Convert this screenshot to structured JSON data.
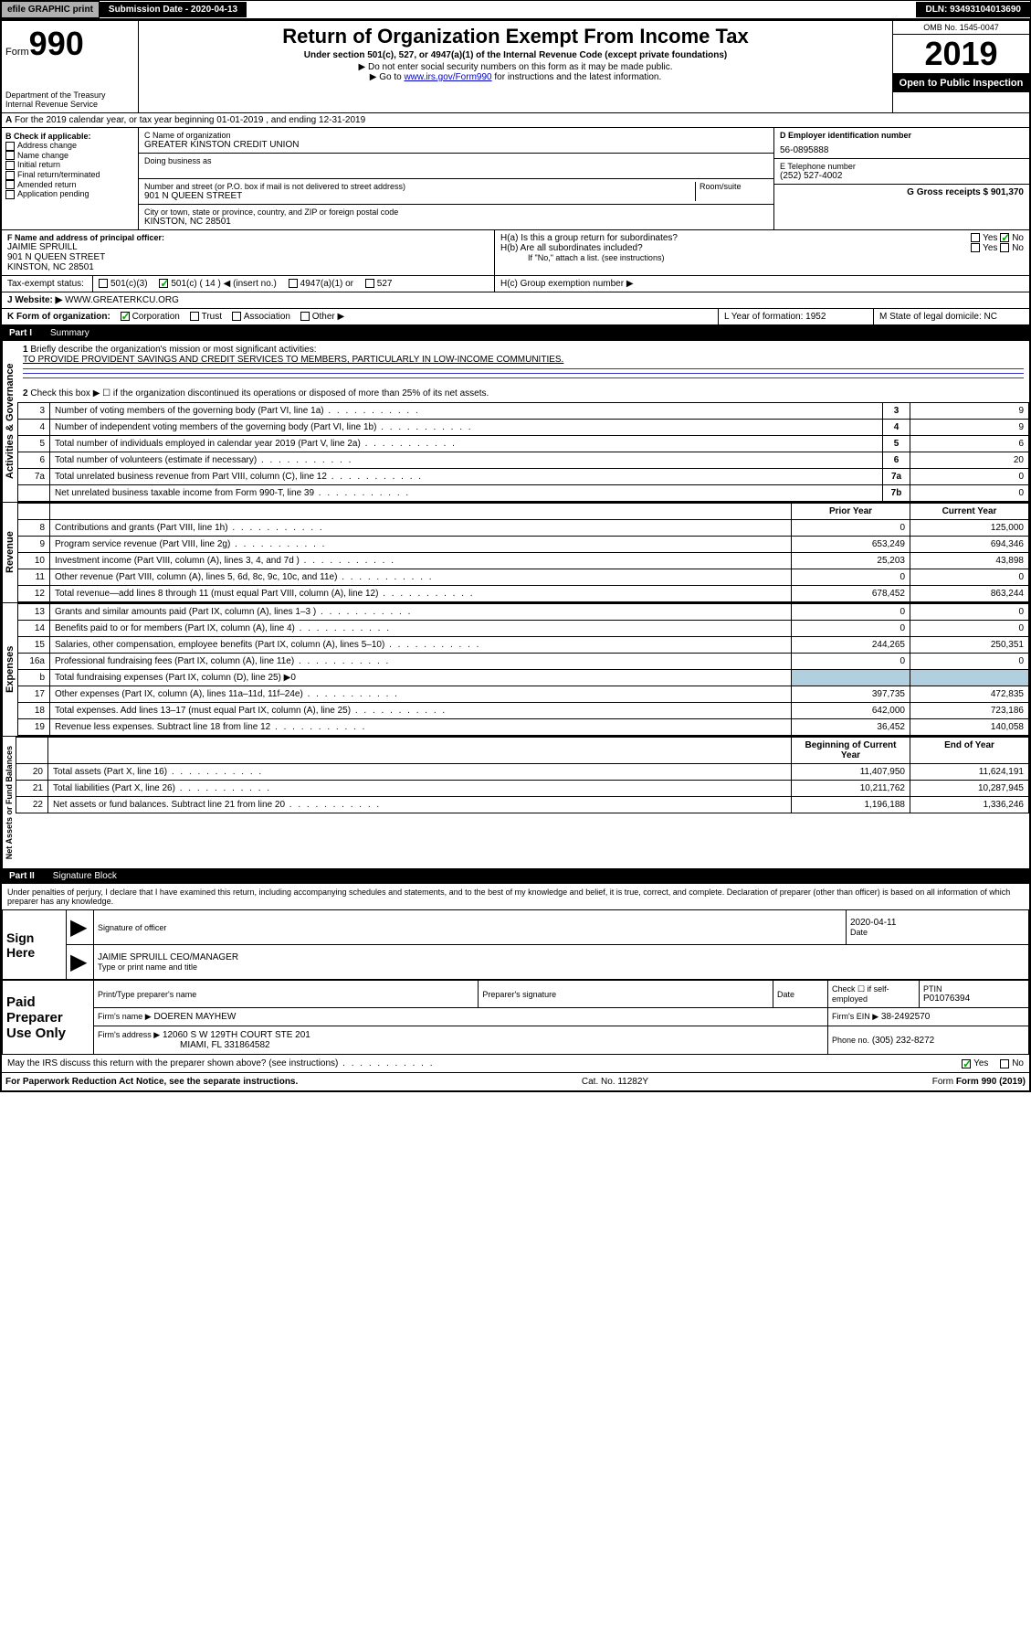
{
  "topbar": {
    "efile": "efile GRAPHIC print",
    "submission": "Submission Date - 2020-04-13",
    "dln": "DLN: 93493104013690"
  },
  "header": {
    "form_label": "Form",
    "form_num": "990",
    "dept": "Department of the Treasury",
    "irs": "Internal Revenue Service",
    "title": "Return of Organization Exempt From Income Tax",
    "subtitle": "Under section 501(c), 527, or 4947(a)(1) of the Internal Revenue Code (except private foundations)",
    "note1": "▶ Do not enter social security numbers on this form as it may be made public.",
    "note2_pre": "▶ Go to ",
    "note2_link": "www.irs.gov/Form990",
    "note2_post": " for instructions and the latest information.",
    "omb": "OMB No. 1545-0047",
    "year": "2019",
    "open": "Open to Public Inspection"
  },
  "sectionA": "For the 2019 calendar year, or tax year beginning 01-01-2019   , and ending 12-31-2019",
  "boxB": {
    "label": "B Check if applicable:",
    "opts": [
      "Address change",
      "Name change",
      "Initial return",
      "Final return/terminated",
      "Amended return",
      "Application pending"
    ]
  },
  "boxC": {
    "name_label": "C Name of organization",
    "name": "GREATER KINSTON CREDIT UNION",
    "dba_label": "Doing business as",
    "addr_label": "Number and street (or P.O. box if mail is not delivered to street address)",
    "room_label": "Room/suite",
    "addr": "901 N QUEEN STREET",
    "city_label": "City or town, state or province, country, and ZIP or foreign postal code",
    "city": "KINSTON, NC  28501"
  },
  "boxD": {
    "label": "D Employer identification number",
    "value": "56-0895888"
  },
  "boxE": {
    "label": "E Telephone number",
    "value": "(252) 527-4002"
  },
  "boxF": {
    "label": "F  Name and address of principal officer:",
    "name": "JAIMIE SPRUILL",
    "addr1": "901 N QUEEN STREET",
    "addr2": "KINSTON, NC  28501"
  },
  "boxG": {
    "label": "G Gross receipts $ 901,370"
  },
  "boxH": {
    "ha": "H(a)  Is this a group return for subordinates?",
    "hb": "H(b)  Are all subordinates included?",
    "hb_note": "If \"No,\" attach a list. (see instructions)",
    "hc": "H(c)  Group exemption number ▶",
    "yes": "Yes",
    "no": "No"
  },
  "taxExempt": {
    "label": "Tax-exempt status:",
    "c501c3": "501(c)(3)",
    "c501c": "501(c) ( 14 ) ◀ (insert no.)",
    "c4947": "4947(a)(1) or",
    "c527": "527"
  },
  "boxJ": {
    "label": "J",
    "website": "Website: ▶",
    "value": "WWW.GREATERKCU.ORG"
  },
  "boxK": {
    "label": "K Form of organization:",
    "corp": "Corporation",
    "trust": "Trust",
    "assoc": "Association",
    "other": "Other ▶"
  },
  "boxL": {
    "label": "L Year of formation: 1952"
  },
  "boxM": {
    "label": "M State of legal domicile: NC"
  },
  "part1": {
    "label": "Part I",
    "title": "Summary"
  },
  "summary": {
    "q1": "Briefly describe the organization's mission or most significant activities:",
    "q1_ans": "TO PROVIDE PROVIDENT SAVINGS AND CREDIT SERVICES TO MEMBERS, PARTICULARLY IN LOW-INCOME COMMUNITIES.",
    "q2": "Check this box ▶ ☐  if the organization discontinued its operations or disposed of more than 25% of its net assets.",
    "rows_ag": [
      {
        "n": "3",
        "t": "Number of voting members of the governing body (Part VI, line 1a)",
        "box": "3",
        "v": "9"
      },
      {
        "n": "4",
        "t": "Number of independent voting members of the governing body (Part VI, line 1b)",
        "box": "4",
        "v": "9"
      },
      {
        "n": "5",
        "t": "Total number of individuals employed in calendar year 2019 (Part V, line 2a)",
        "box": "5",
        "v": "6"
      },
      {
        "n": "6",
        "t": "Total number of volunteers (estimate if necessary)",
        "box": "6",
        "v": "20"
      },
      {
        "n": "7a",
        "t": "Total unrelated business revenue from Part VIII, column (C), line 12",
        "box": "7a",
        "v": "0"
      },
      {
        "n": "",
        "t": "Net unrelated business taxable income from Form 990-T, line 39",
        "box": "7b",
        "v": "0"
      }
    ],
    "col_headers": {
      "prior": "Prior Year",
      "current": "Current Year",
      "begin": "Beginning of Current Year",
      "end": "End of Year"
    },
    "rows_rev": [
      {
        "n": "8",
        "t": "Contributions and grants (Part VIII, line 1h)",
        "p": "0",
        "c": "125,000"
      },
      {
        "n": "9",
        "t": "Program service revenue (Part VIII, line 2g)",
        "p": "653,249",
        "c": "694,346"
      },
      {
        "n": "10",
        "t": "Investment income (Part VIII, column (A), lines 3, 4, and 7d )",
        "p": "25,203",
        "c": "43,898"
      },
      {
        "n": "11",
        "t": "Other revenue (Part VIII, column (A), lines 5, 6d, 8c, 9c, 10c, and 11e)",
        "p": "0",
        "c": "0"
      },
      {
        "n": "12",
        "t": "Total revenue—add lines 8 through 11 (must equal Part VIII, column (A), line 12)",
        "p": "678,452",
        "c": "863,244"
      }
    ],
    "rows_exp": [
      {
        "n": "13",
        "t": "Grants and similar amounts paid (Part IX, column (A), lines 1–3 )",
        "p": "0",
        "c": "0"
      },
      {
        "n": "14",
        "t": "Benefits paid to or for members (Part IX, column (A), line 4)",
        "p": "0",
        "c": "0"
      },
      {
        "n": "15",
        "t": "Salaries, other compensation, employee benefits (Part IX, column (A), lines 5–10)",
        "p": "244,265",
        "c": "250,351"
      },
      {
        "n": "16a",
        "t": "Professional fundraising fees (Part IX, column (A), line 11e)",
        "p": "0",
        "c": "0"
      },
      {
        "n": "b",
        "t": "Total fundraising expenses (Part IX, column (D), line 25) ▶0",
        "p": "",
        "c": ""
      },
      {
        "n": "17",
        "t": "Other expenses (Part IX, column (A), lines 11a–11d, 11f–24e)",
        "p": "397,735",
        "c": "472,835"
      },
      {
        "n": "18",
        "t": "Total expenses. Add lines 13–17 (must equal Part IX, column (A), line 25)",
        "p": "642,000",
        "c": "723,186"
      },
      {
        "n": "19",
        "t": "Revenue less expenses. Subtract line 18 from line 12",
        "p": "36,452",
        "c": "140,058"
      }
    ],
    "rows_net": [
      {
        "n": "20",
        "t": "Total assets (Part X, line 16)",
        "p": "11,407,950",
        "c": "11,624,191"
      },
      {
        "n": "21",
        "t": "Total liabilities (Part X, line 26)",
        "p": "10,211,762",
        "c": "10,287,945"
      },
      {
        "n": "22",
        "t": "Net assets or fund balances. Subtract line 21 from line 20",
        "p": "1,196,188",
        "c": "1,336,246"
      }
    ]
  },
  "vert_labels": {
    "ag": "Activities & Governance",
    "rev": "Revenue",
    "exp": "Expenses",
    "net": "Net Assets or Fund Balances"
  },
  "part2": {
    "label": "Part II",
    "title": "Signature Block"
  },
  "perjury": "Under penalties of perjury, I declare that I have examined this return, including accompanying schedules and statements, and to the best of my knowledge and belief, it is true, correct, and complete. Declaration of preparer (other than officer) is based on all information of which preparer has any knowledge.",
  "sign": {
    "here": "Sign Here",
    "sig_label": "Signature of officer",
    "date": "2020-04-11",
    "date_label": "Date",
    "name": "JAIMIE SPRUILL CEO/MANAGER",
    "name_label": "Type or print name and title"
  },
  "paid": {
    "label": "Paid Preparer Use Only",
    "prep_name_label": "Print/Type preparer's name",
    "prep_sig_label": "Preparer's signature",
    "date_label": "Date",
    "check_label": "Check ☐ if self-employed",
    "ptin_label": "PTIN",
    "ptin": "P01076394",
    "firm_name_label": "Firm's name    ▶",
    "firm_name": "DOEREN MAYHEW",
    "firm_ein_label": "Firm's EIN ▶",
    "firm_ein": "38-2492570",
    "firm_addr_label": "Firm's address ▶",
    "firm_addr": "12060 S W 129TH COURT STE 201",
    "firm_city": "MIAMI, FL  331864582",
    "phone_label": "Phone no.",
    "phone": "(305) 232-8272"
  },
  "discuss": "May the IRS discuss this return with the preparer shown above? (see instructions)",
  "discuss_yes": "Yes",
  "discuss_no": "No",
  "footer": {
    "left": "For Paperwork Reduction Act Notice, see the separate instructions.",
    "mid": "Cat. No. 11282Y",
    "right": "Form 990 (2019)"
  }
}
